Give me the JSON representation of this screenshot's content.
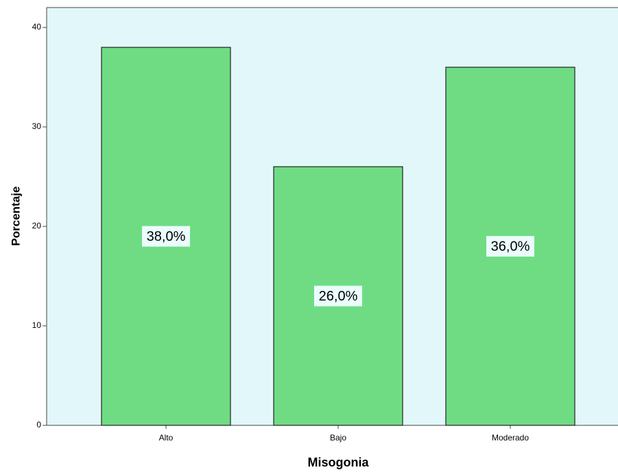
{
  "chart_data": {
    "type": "bar",
    "x_label": "Misogonia",
    "y_label": "Porcentaje",
    "categories": [
      "Alto",
      "Bajo",
      "Moderado"
    ],
    "values": [
      38,
      26,
      36
    ],
    "value_labels": [
      "38,0%",
      "26,0%",
      "36,0%"
    ],
    "color": "#6fdc84",
    "ylim": [
      0,
      40
    ],
    "yticks": [
      0,
      10,
      20,
      30,
      40
    ]
  }
}
